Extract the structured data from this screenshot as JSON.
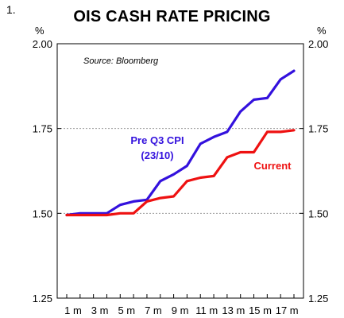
{
  "figure_number": "1.",
  "chart_data": {
    "type": "line",
    "title": "OIS CASH RATE PRICING",
    "source": "Source: Bloomberg",
    "y_unit_left": "%",
    "y_unit_right": "%",
    "ylim": [
      1.25,
      2.0
    ],
    "yticks": [
      "2.00",
      "1.75",
      "1.50",
      "1.25"
    ],
    "ytick_values": [
      2.0,
      1.75,
      1.5,
      1.25
    ],
    "grid": "dotted horizontal at 1.50 and 1.75",
    "x": [
      1,
      2,
      3,
      4,
      5,
      6,
      7,
      8,
      9,
      10,
      11,
      12,
      13,
      14,
      15,
      16,
      17,
      18
    ],
    "x_tick_labels": [
      "1 m",
      "3 m",
      "5 m",
      "7 m",
      "9 m",
      "11 m",
      "13 m",
      "15 m",
      "17 m"
    ],
    "x_tick_positions": [
      1,
      3,
      5,
      7,
      9,
      11,
      13,
      15,
      17
    ],
    "series": [
      {
        "name_lines": [
          "Pre Q3 CPI",
          "(23/10)"
        ],
        "color": "#3311dd",
        "values": [
          1.495,
          1.5,
          1.5,
          1.5,
          1.525,
          1.535,
          1.54,
          1.595,
          1.615,
          1.64,
          1.705,
          1.725,
          1.74,
          1.8,
          1.835,
          1.84,
          1.895,
          1.92
        ]
      },
      {
        "name": "Current",
        "color": "#ee1111",
        "values": [
          1.495,
          1.495,
          1.495,
          1.495,
          1.5,
          1.5,
          1.535,
          1.545,
          1.55,
          1.595,
          1.605,
          1.61,
          1.665,
          1.68,
          1.68,
          1.74,
          1.74,
          1.745
        ]
      }
    ]
  }
}
